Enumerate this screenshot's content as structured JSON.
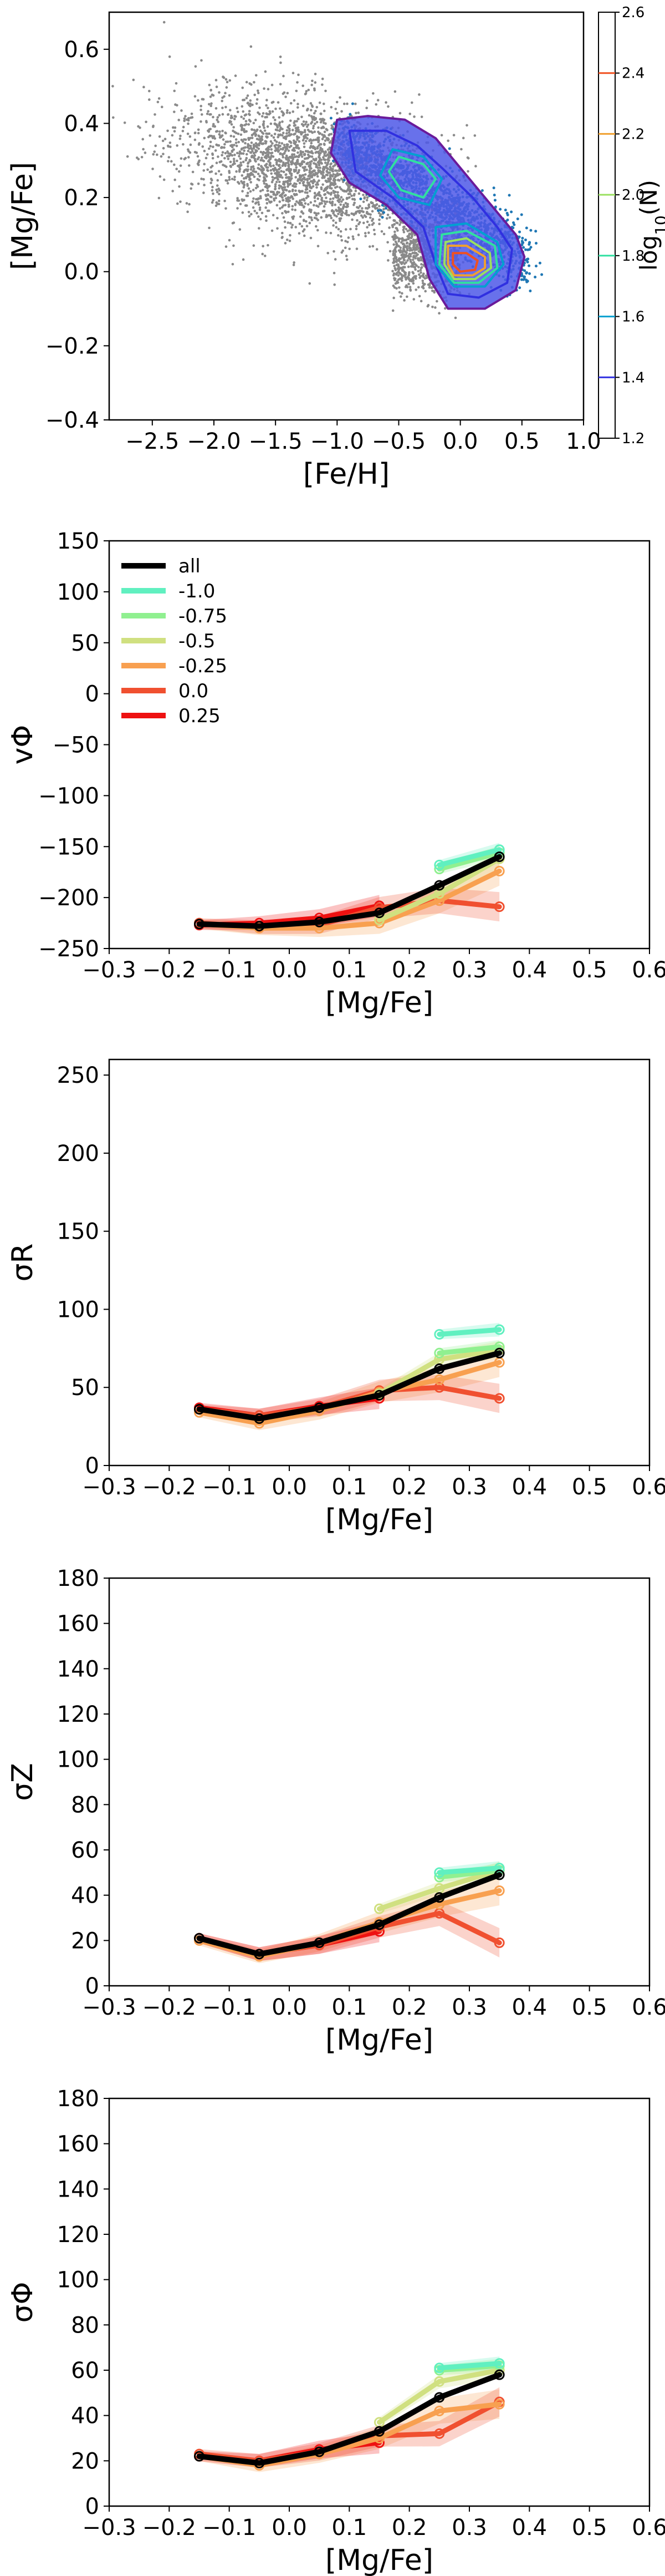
{
  "chart_data": [
    {
      "type": "scatter",
      "xlabel": "[Fe/H]",
      "ylabel": "[Mg/Fe]",
      "xlim": [
        -2.85,
        1.0
      ],
      "ylim": [
        -0.4,
        0.7
      ],
      "xticks": [
        -2.5,
        -2.0,
        -1.5,
        -1.0,
        -0.5,
        0.0,
        0.5,
        1.0
      ],
      "xtick_labels": [
        "−2.5",
        "−2.0",
        "−1.5",
        "−1.0",
        "−0.5",
        "0.0",
        "0.5",
        "1.0"
      ],
      "yticks": [
        -0.4,
        -0.2,
        0.0,
        0.2,
        0.4,
        0.6
      ],
      "ytick_labels": [
        "−0.4",
        "−0.2",
        "0.0",
        "0.2",
        "0.4",
        "0.6"
      ],
      "point_colors": {
        "sparse": "#8a8a8a",
        "dense": "#1f77b4"
      },
      "density_regions": [
        {
          "level": 1.2,
          "color": "#6a1a9a",
          "polygon": [
            [
              -1.0,
              0.41
            ],
            [
              -0.75,
              0.42
            ],
            [
              -0.45,
              0.41
            ],
            [
              -0.2,
              0.36
            ],
            [
              0.05,
              0.26
            ],
            [
              0.25,
              0.18
            ],
            [
              0.45,
              0.1
            ],
            [
              0.52,
              0.04
            ],
            [
              0.45,
              -0.05
            ],
            [
              0.2,
              -0.1
            ],
            [
              -0.1,
              -0.1
            ],
            [
              -0.25,
              -0.02
            ],
            [
              -0.35,
              0.1
            ],
            [
              -0.6,
              0.18
            ],
            [
              -0.9,
              0.24
            ],
            [
              -1.05,
              0.32
            ]
          ]
        },
        {
          "level": 1.4,
          "color": "#3030e0",
          "polygon": [
            [
              -0.9,
              0.38
            ],
            [
              -0.6,
              0.38
            ],
            [
              -0.35,
              0.34
            ],
            [
              -0.15,
              0.28
            ],
            [
              0.1,
              0.2
            ],
            [
              0.3,
              0.12
            ],
            [
              0.42,
              0.06
            ],
            [
              0.38,
              -0.03
            ],
            [
              0.15,
              -0.07
            ],
            [
              -0.1,
              -0.06
            ],
            [
              -0.2,
              0.02
            ],
            [
              -0.3,
              0.12
            ],
            [
              -0.55,
              0.2
            ],
            [
              -0.85,
              0.27
            ]
          ]
        },
        {
          "level": 1.6,
          "color": "#00a0d0",
          "polygon": [
            [
              -0.55,
              0.33
            ],
            [
              -0.3,
              0.31
            ],
            [
              -0.15,
              0.25
            ],
            [
              -0.25,
              0.18
            ],
            [
              -0.5,
              0.2
            ],
            [
              -0.65,
              0.26
            ]
          ]
        },
        {
          "level": 1.8,
          "color": "#30e0a0",
          "polygon": [
            [
              -0.5,
              0.31
            ],
            [
              -0.3,
              0.29
            ],
            [
              -0.2,
              0.25
            ],
            [
              -0.3,
              0.2
            ],
            [
              -0.48,
              0.22
            ],
            [
              -0.58,
              0.27
            ]
          ]
        },
        {
          "level": 1.6,
          "color": "#00a0d0",
          "polygon": [
            [
              -0.2,
              0.12
            ],
            [
              0.05,
              0.13
            ],
            [
              0.3,
              0.08
            ],
            [
              0.35,
              0.02
            ],
            [
              0.2,
              -0.04
            ],
            [
              -0.05,
              -0.04
            ],
            [
              -0.2,
              0.02
            ]
          ]
        },
        {
          "level": 1.8,
          "color": "#30e0a0",
          "polygon": [
            [
              -0.15,
              0.1
            ],
            [
              0.05,
              0.11
            ],
            [
              0.28,
              0.07
            ],
            [
              0.3,
              0.01
            ],
            [
              0.15,
              -0.03
            ],
            [
              -0.05,
              -0.03
            ],
            [
              -0.17,
              0.02
            ]
          ]
        },
        {
          "level": 2.0,
          "color": "#9ae060",
          "polygon": [
            [
              -0.12,
              0.08
            ],
            [
              0.05,
              0.09
            ],
            [
              0.24,
              0.05
            ],
            [
              0.25,
              0.01
            ],
            [
              0.12,
              -0.02
            ],
            [
              -0.05,
              -0.02
            ],
            [
              -0.13,
              0.02
            ]
          ]
        },
        {
          "level": 2.2,
          "color": "#f0a030",
          "polygon": [
            [
              -0.1,
              0.07
            ],
            [
              0.05,
              0.07
            ],
            [
              0.2,
              0.04
            ],
            [
              0.2,
              0.01
            ],
            [
              0.1,
              -0.01
            ],
            [
              -0.05,
              -0.01
            ],
            [
              -0.1,
              0.02
            ]
          ]
        },
        {
          "level": 2.4,
          "color": "#f05020",
          "polygon": [
            [
              -0.06,
              0.05
            ],
            [
              0.05,
              0.05
            ],
            [
              0.14,
              0.03
            ],
            [
              0.12,
              0.005
            ],
            [
              0.0,
              0.0
            ],
            [
              -0.06,
              0.02
            ]
          ]
        }
      ],
      "colorbar": {
        "label": "log$_{10}$(N)",
        "ticks": [
          1.2,
          1.4,
          1.6,
          1.8,
          2.0,
          2.2,
          2.4,
          2.6
        ],
        "tick_labels": [
          "1.2",
          "1.4",
          "1.6",
          "1.8",
          "2.0",
          "2.2",
          "2.4",
          "2.6"
        ],
        "colors": [
          "#6a1a9a",
          "#3030e0",
          "#00a0d0",
          "#30e0a0",
          "#9ae060",
          "#f0a030",
          "#f05020",
          "#d01010"
        ]
      }
    },
    {
      "type": "line",
      "ylabel": "vΦ",
      "xlabel": "[Mg/Fe]",
      "xlim": [
        -0.3,
        0.6
      ],
      "ylim": [
        -250,
        150
      ],
      "xticks": [
        -0.3,
        -0.2,
        -0.1,
        0.0,
        0.1,
        0.2,
        0.3,
        0.4,
        0.5,
        0.6
      ],
      "xtick_labels": [
        "−0.3",
        "−0.2",
        "−0.1",
        "0.0",
        "0.1",
        "0.2",
        "0.3",
        "0.4",
        "0.5",
        "0.6"
      ],
      "yticks": [
        -250,
        -200,
        -150,
        -100,
        -50,
        0,
        50,
        100,
        150
      ],
      "ytick_labels": [
        "−250",
        "−200",
        "−150",
        "−100",
        "−50",
        "0",
        "50",
        "100",
        "150"
      ],
      "legend": {
        "position": "top-left",
        "entries": [
          "all",
          "-1.0",
          "-0.75",
          "-0.5",
          "-0.25",
          "0.0",
          "0.25"
        ]
      },
      "series": [
        {
          "name": "all",
          "color": "#000000",
          "x": [
            -0.15,
            -0.05,
            0.05,
            0.15,
            0.25,
            0.35
          ],
          "y": [
            -226,
            -228,
            -224,
            -215,
            -188,
            -160
          ]
        },
        {
          "name": "-1.0",
          "color": "#60f0c0",
          "x": [
            0.25,
            0.35
          ],
          "y": [
            -168,
            -153
          ]
        },
        {
          "name": "-0.75",
          "color": "#90f090",
          "x": [
            0.25,
            0.35
          ],
          "y": [
            -172,
            -156
          ]
        },
        {
          "name": "-0.5",
          "color": "#d0e080",
          "x": [
            0.15,
            0.25,
            0.35
          ],
          "y": [
            -222,
            -196,
            -162
          ]
        },
        {
          "name": "-0.25",
          "color": "#f8a050",
          "x": [
            -0.15,
            -0.05,
            0.05,
            0.15,
            0.25,
            0.35
          ],
          "y": [
            -226,
            -230,
            -230,
            -225,
            -203,
            -174
          ]
        },
        {
          "name": "0.0",
          "color": "#f05030",
          "x": [
            -0.15,
            -0.05,
            0.05,
            0.15,
            0.25,
            0.35
          ],
          "y": [
            -225,
            -229,
            -227,
            -210,
            -203,
            -209
          ]
        },
        {
          "name": "0.25",
          "color": "#ee1111",
          "x": [
            -0.15,
            -0.05,
            0.05,
            0.15
          ],
          "y": [
            -227,
            -225,
            -220,
            -208
          ]
        }
      ]
    },
    {
      "type": "line",
      "ylabel": "σR",
      "xlabel": "[Mg/Fe]",
      "xlim": [
        -0.3,
        0.6
      ],
      "ylim": [
        0,
        260
      ],
      "xticks": [
        -0.3,
        -0.2,
        -0.1,
        0.0,
        0.1,
        0.2,
        0.3,
        0.4,
        0.5,
        0.6
      ],
      "xtick_labels": [
        "−0.3",
        "−0.2",
        "−0.1",
        "0.0",
        "0.1",
        "0.2",
        "0.3",
        "0.4",
        "0.5",
        "0.6"
      ],
      "yticks": [
        0,
        50,
        100,
        150,
        200,
        250
      ],
      "ytick_labels": [
        "0",
        "50",
        "100",
        "150",
        "200",
        "250"
      ],
      "series": [
        {
          "name": "all",
          "color": "#000000",
          "x": [
            -0.15,
            -0.05,
            0.05,
            0.15,
            0.25,
            0.35
          ],
          "y": [
            36,
            30,
            37,
            45,
            62,
            72
          ]
        },
        {
          "name": "-1.0",
          "color": "#60f0c0",
          "x": [
            0.25,
            0.35
          ],
          "y": [
            84,
            87
          ]
        },
        {
          "name": "-0.75",
          "color": "#90f090",
          "x": [
            0.25,
            0.35
          ],
          "y": [
            72,
            76
          ]
        },
        {
          "name": "-0.5",
          "color": "#d0e080",
          "x": [
            0.15,
            0.25,
            0.35
          ],
          "y": [
            46,
            68,
            74
          ]
        },
        {
          "name": "-0.25",
          "color": "#f8a050",
          "x": [
            -0.15,
            -0.05,
            0.05,
            0.15,
            0.25,
            0.35
          ],
          "y": [
            34,
            27,
            35,
            47,
            55,
            66
          ]
        },
        {
          "name": "0.0",
          "color": "#f05030",
          "x": [
            -0.15,
            -0.05,
            0.05,
            0.15,
            0.25,
            0.35
          ],
          "y": [
            36,
            32,
            37,
            48,
            50,
            43
          ]
        },
        {
          "name": "0.25",
          "color": "#ee1111",
          "x": [
            -0.15,
            -0.05,
            0.05,
            0.15
          ],
          "y": [
            37,
            32,
            38,
            43
          ]
        }
      ]
    },
    {
      "type": "line",
      "ylabel": "σZ",
      "xlabel": "[Mg/Fe]",
      "xlim": [
        -0.3,
        0.6
      ],
      "ylim": [
        0,
        180
      ],
      "xticks": [
        -0.3,
        -0.2,
        -0.1,
        0.0,
        0.1,
        0.2,
        0.3,
        0.4,
        0.5,
        0.6
      ],
      "xtick_labels": [
        "−0.3",
        "−0.2",
        "−0.1",
        "0.0",
        "0.1",
        "0.2",
        "0.3",
        "0.4",
        "0.5",
        "0.6"
      ],
      "yticks": [
        0,
        20,
        40,
        60,
        80,
        100,
        120,
        140,
        160,
        180
      ],
      "ytick_labels": [
        "0",
        "20",
        "40",
        "60",
        "80",
        "100",
        "120",
        "140",
        "160",
        "180"
      ],
      "series": [
        {
          "name": "all",
          "color": "#000000",
          "x": [
            -0.15,
            -0.05,
            0.05,
            0.15,
            0.25,
            0.35
          ],
          "y": [
            21,
            14,
            19,
            27,
            39,
            49
          ]
        },
        {
          "name": "-1.0",
          "color": "#60f0c0",
          "x": [
            0.25,
            0.35
          ],
          "y": [
            50,
            52
          ]
        },
        {
          "name": "-0.75",
          "color": "#90f090",
          "x": [
            0.25,
            0.35
          ],
          "y": [
            48,
            51
          ]
        },
        {
          "name": "-0.5",
          "color": "#d0e080",
          "x": [
            0.15,
            0.25,
            0.35
          ],
          "y": [
            34,
            43,
            51
          ]
        },
        {
          "name": "-0.25",
          "color": "#f8a050",
          "x": [
            -0.15,
            -0.05,
            0.05,
            0.15,
            0.25,
            0.35
          ],
          "y": [
            20,
            13,
            19,
            28,
            36,
            42
          ]
        },
        {
          "name": "0.0",
          "color": "#f05030",
          "x": [
            -0.15,
            -0.05,
            0.05,
            0.15,
            0.25,
            0.35
          ],
          "y": [
            21,
            14,
            18,
            26,
            32,
            19
          ]
        },
        {
          "name": "0.25",
          "color": "#ee1111",
          "x": [
            -0.15,
            -0.05,
            0.05,
            0.15
          ],
          "y": [
            21,
            14,
            18,
            24
          ]
        }
      ]
    },
    {
      "type": "line",
      "ylabel": "σΦ",
      "xlabel": "[Mg/Fe]",
      "xlim": [
        -0.3,
        0.6
      ],
      "ylim": [
        0,
        180
      ],
      "xticks": [
        -0.3,
        -0.2,
        -0.1,
        0.0,
        0.1,
        0.2,
        0.3,
        0.4,
        0.5,
        0.6
      ],
      "xtick_labels": [
        "−0.3",
        "−0.2",
        "−0.1",
        "0.0",
        "0.1",
        "0.2",
        "0.3",
        "0.4",
        "0.5",
        "0.6"
      ],
      "yticks": [
        0,
        20,
        40,
        60,
        80,
        100,
        120,
        140,
        160,
        180
      ],
      "ytick_labels": [
        "0",
        "20",
        "40",
        "60",
        "80",
        "100",
        "120",
        "140",
        "160",
        "180"
      ],
      "series": [
        {
          "name": "all",
          "color": "#000000",
          "x": [
            -0.15,
            -0.05,
            0.05,
            0.15,
            0.25,
            0.35
          ],
          "y": [
            22,
            19,
            24,
            33,
            48,
            58
          ]
        },
        {
          "name": "-1.0",
          "color": "#60f0c0",
          "x": [
            0.25,
            0.35
          ],
          "y": [
            61,
            63
          ]
        },
        {
          "name": "-0.75",
          "color": "#90f090",
          "x": [
            0.25,
            0.35
          ],
          "y": [
            60,
            62
          ]
        },
        {
          "name": "-0.5",
          "color": "#d0e080",
          "x": [
            0.15,
            0.25,
            0.35
          ],
          "y": [
            37,
            55,
            60
          ]
        },
        {
          "name": "-0.25",
          "color": "#f8a050",
          "x": [
            -0.15,
            -0.05,
            0.05,
            0.15,
            0.25,
            0.35
          ],
          "y": [
            22,
            18,
            23,
            30,
            42,
            45
          ]
        },
        {
          "name": "0.0",
          "color": "#f05030",
          "x": [
            -0.15,
            -0.05,
            0.05,
            0.15,
            0.25,
            0.35
          ],
          "y": [
            23,
            20,
            24,
            31,
            32,
            46
          ]
        },
        {
          "name": "0.25",
          "color": "#ee1111",
          "x": [
            -0.15,
            -0.05,
            0.05,
            0.15
          ],
          "y": [
            22,
            20,
            25,
            28
          ]
        }
      ]
    }
  ]
}
